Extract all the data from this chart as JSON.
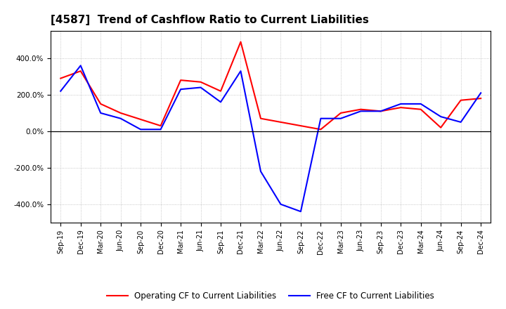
{
  "title": "[4587]  Trend of Cashflow Ratio to Current Liabilities",
  "labels": [
    "Sep-19",
    "Dec-19",
    "Mar-20",
    "Jun-20",
    "Sep-20",
    "Dec-20",
    "Mar-21",
    "Jun-21",
    "Sep-21",
    "Dec-21",
    "Mar-22",
    "Jun-22",
    "Sep-22",
    "Dec-22",
    "Mar-23",
    "Jun-23",
    "Sep-23",
    "Dec-23",
    "Mar-24",
    "Jun-24",
    "Sep-24",
    "Dec-24"
  ],
  "operating_cf": [
    290,
    330,
    150,
    100,
    65,
    30,
    280,
    270,
    220,
    490,
    70,
    50,
    30,
    10,
    100,
    120,
    110,
    130,
    120,
    20,
    170,
    180
  ],
  "free_cf": [
    220,
    360,
    100,
    70,
    10,
    10,
    230,
    240,
    160,
    330,
    -220,
    -400,
    -440,
    70,
    70,
    110,
    110,
    150,
    150,
    80,
    50,
    210
  ],
  "operating_color": "#ff0000",
  "free_color": "#0000ff",
  "ylim": [
    -500,
    550
  ],
  "yticks": [
    -400,
    -200,
    0,
    200,
    400
  ],
  "background_color": "#ffffff",
  "grid_color": "#888888",
  "legend_op": "Operating CF to Current Liabilities",
  "legend_free": "Free CF to Current Liabilities",
  "title_fontsize": 11,
  "tick_fontsize": 7,
  "legend_fontsize": 8.5
}
